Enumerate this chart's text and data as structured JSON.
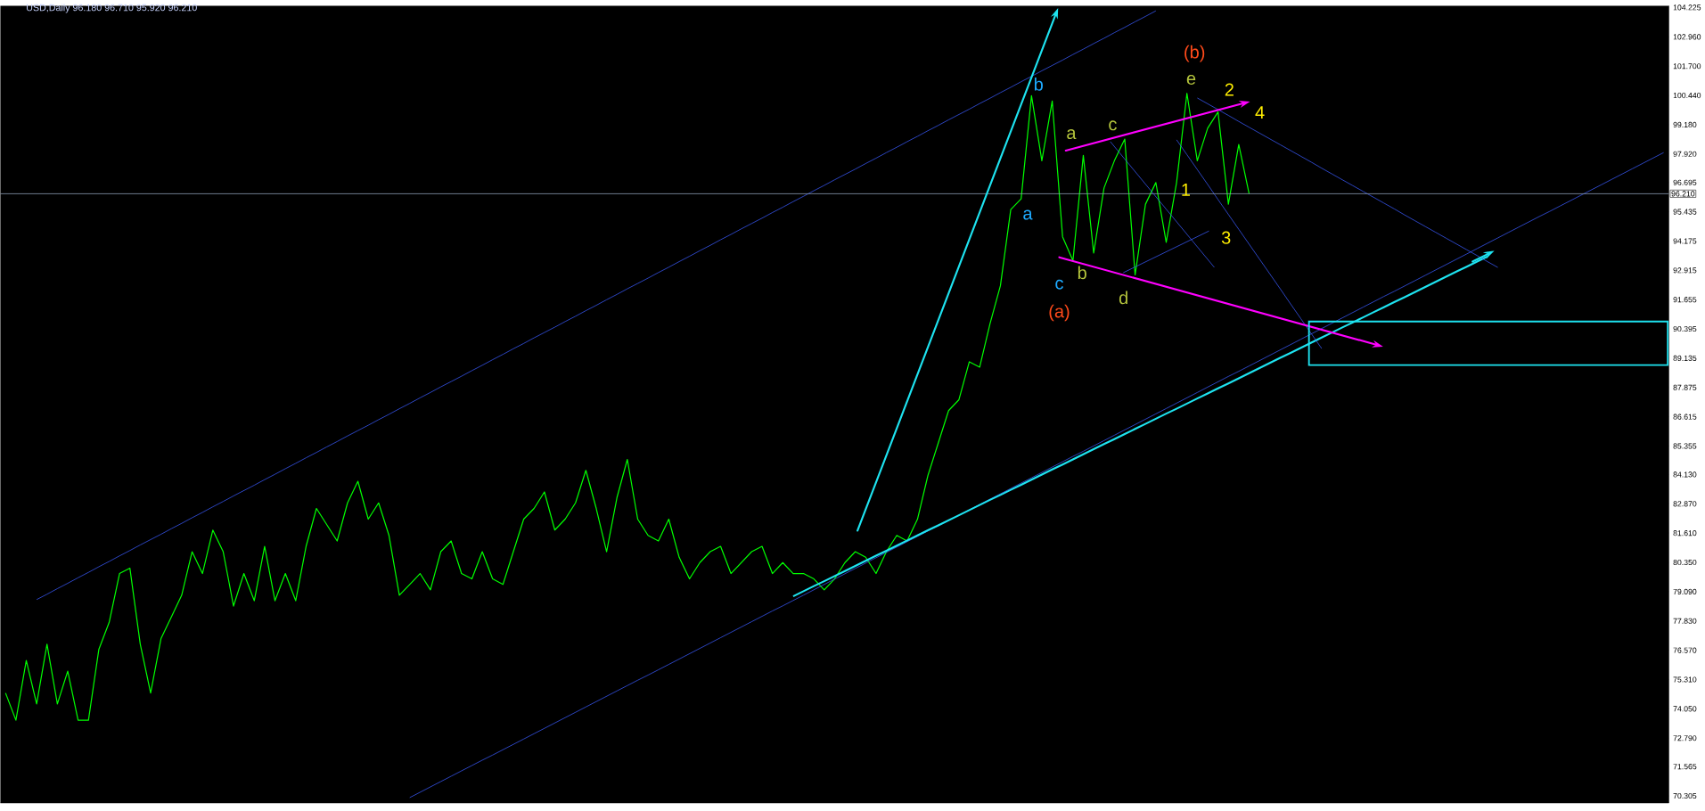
{
  "chart_data": {
    "type": "line",
    "title": "USD,Daily  96.180 96.710 95.920 96.210",
    "categories": [
      null,
      null,
      null,
      null,
      null,
      null,
      null,
      null,
      null,
      null,
      null,
      null,
      null,
      null,
      null,
      null,
      null,
      null,
      null,
      null,
      null,
      null,
      null,
      null,
      null,
      null,
      null,
      null,
      null,
      null,
      null,
      null,
      null,
      null,
      null,
      null,
      null,
      null,
      null,
      null,
      null,
      null,
      null,
      null,
      null,
      null,
      null,
      null,
      null,
      null,
      null,
      null,
      null,
      null,
      null,
      null,
      null,
      null,
      null,
      null,
      null,
      null,
      null,
      null,
      null,
      null,
      null,
      null,
      null,
      null,
      null,
      null,
      null,
      null,
      null,
      null,
      null,
      null,
      null,
      null,
      null,
      null,
      null,
      null,
      null,
      null,
      null,
      null,
      null,
      null,
      null,
      null,
      null,
      null,
      null,
      null,
      null,
      null,
      null,
      null,
      null,
      null,
      null,
      null,
      null,
      null,
      null,
      null,
      null,
      null,
      null,
      null,
      null,
      null,
      null,
      null,
      null,
      null,
      null,
      null,
      null,
      null,
      null,
      null,
      null,
      null,
      null,
      null,
      null,
      null,
      null,
      null,
      null,
      null,
      null,
      null,
      null,
      null,
      null,
      null,
      null,
      null,
      null,
      null,
      null,
      null,
      null,
      null,
      null,
      null,
      null,
      null,
      null,
      null,
      null,
      null,
      null,
      null,
      null,
      null,
      null
    ],
    "ylim": [
      70.0,
      104.3
    ],
    "tick_labels": "y",
    "grid": false,
    "marker": "none",
    "yticks": [
      {
        "value": 70.305,
        "label": "70.305"
      },
      {
        "value": 71.565,
        "label": "71.565"
      },
      {
        "value": 72.79,
        "label": "72.790"
      },
      {
        "value": 74.05,
        "label": "74.050"
      },
      {
        "value": 75.31,
        "label": "75.310"
      },
      {
        "value": 76.57,
        "label": "76.570"
      },
      {
        "value": 77.83,
        "label": "77.830"
      },
      {
        "value": 79.09,
        "label": "79.090"
      },
      {
        "value": 80.35,
        "label": "80.350"
      },
      {
        "value": 81.61,
        "label": "81.610"
      },
      {
        "value": 82.87,
        "label": "82.870"
      },
      {
        "value": 84.13,
        "label": "84.130"
      },
      {
        "value": 85.355,
        "label": "85.355"
      },
      {
        "value": 86.615,
        "label": "86.615"
      },
      {
        "value": 87.875,
        "label": "87.875"
      },
      {
        "value": 89.135,
        "label": "89.135"
      },
      {
        "value": 90.395,
        "label": "90.395"
      },
      {
        "value": 91.655,
        "label": "91.655"
      },
      {
        "value": 92.915,
        "label": "92.915"
      },
      {
        "value": 94.175,
        "label": "94.175"
      },
      {
        "value": 95.435,
        "label": "95.435"
      },
      {
        "value": 96.695,
        "label": "96.695"
      },
      {
        "value": 97.92,
        "label": "97.920"
      },
      {
        "value": 99.18,
        "label": "99.180"
      },
      {
        "value": 100.44,
        "label": "100.440"
      },
      {
        "value": 101.7,
        "label": "101.700"
      },
      {
        "value": 102.96,
        "label": "102.960"
      },
      {
        "value": 104.225,
        "label": "104.225"
      }
    ],
    "series": [
      {
        "color": "#00ff00",
        "values": [
          74.73,
          73.56,
          76.13,
          74.26,
          76.83,
          74.26,
          75.67,
          73.56,
          73.56,
          76.6,
          77.77,
          79.87,
          80.1,
          76.83,
          74.73,
          77.07,
          78.0,
          78.94,
          80.81,
          79.87,
          81.74,
          80.81,
          78.47,
          79.87,
          78.7,
          81.04,
          78.7,
          79.87,
          78.7,
          81.04,
          82.67,
          81.97,
          81.27,
          82.91,
          83.84,
          82.21,
          82.91,
          81.51,
          78.94,
          79.4,
          79.87,
          79.17,
          80.81,
          81.27,
          79.87,
          79.64,
          80.81,
          79.64,
          79.4,
          80.81,
          82.21,
          82.67,
          83.38,
          81.74,
          82.21,
          82.91,
          84.31,
          82.67,
          80.81,
          83.14,
          84.78,
          82.21,
          81.51,
          81.27,
          82.21,
          80.57,
          79.64,
          80.34,
          80.81,
          81.04,
          79.87,
          80.34,
          80.81,
          81.04,
          79.87,
          80.34,
          79.87,
          79.87,
          79.64,
          79.17,
          79.64,
          80.34,
          80.81,
          80.57,
          79.87,
          80.81,
          81.51,
          81.27,
          82.21,
          84.08,
          85.48,
          86.88,
          87.35,
          88.98,
          88.75,
          90.62,
          92.25,
          95.53,
          95.99,
          100.43,
          97.63,
          100.2,
          94.36,
          93.33,
          97.86,
          93.66,
          96.46,
          97.63,
          98.56,
          92.72,
          95.76,
          96.69,
          94.12,
          96.69,
          100.53,
          97.63,
          99.03,
          99.73,
          95.76,
          98.33,
          96.21,
          null,
          null,
          null,
          null,
          null,
          null,
          null,
          null,
          null,
          null,
          null,
          null,
          null,
          null,
          null,
          null,
          null,
          null,
          null,
          null,
          null,
          null,
          null,
          null,
          null,
          null,
          null,
          null,
          null,
          null,
          null,
          null,
          null,
          null,
          null,
          null,
          null,
          null,
          null,
          null
        ]
      },
      {
        "color": "#3a5cff",
        "values": [
          null,
          null,
          null,
          78.75,
          78.98,
          79.22,
          79.45,
          79.69,
          79.92,
          80.16,
          80.39,
          80.63,
          80.86,
          81.1,
          81.33,
          81.56,
          81.8,
          82.03,
          82.27,
          82.5,
          82.74,
          82.97,
          83.21,
          83.44,
          83.67,
          83.91,
          84.14,
          84.38,
          84.61,
          84.85,
          85.08,
          85.32,
          85.55,
          85.79,
          86.02,
          86.25,
          86.49,
          86.72,
          86.96,
          87.19,
          87.43,
          87.66,
          87.9,
          88.13,
          88.36,
          88.6,
          88.83,
          89.07,
          89.3,
          89.54,
          89.77,
          90.01,
          90.24,
          90.47,
          90.71,
          90.94,
          91.18,
          91.41,
          91.65,
          91.88,
          92.12,
          92.35,
          92.58,
          92.82,
          93.05,
          93.29,
          93.52,
          93.76,
          93.99,
          94.23,
          94.46,
          94.7,
          94.93,
          95.16,
          95.4,
          95.63,
          95.87,
          96.1,
          96.34,
          96.57,
          96.81,
          97.04,
          97.27,
          97.51,
          97.74,
          97.98,
          98.21,
          98.45,
          98.68,
          98.92,
          99.15,
          99.39,
          99.62,
          99.85,
          100.09,
          100.32,
          100.56,
          100.79,
          101.03,
          101.26,
          101.5,
          101.73,
          101.96,
          102.2,
          102.43,
          102.67,
          102.9,
          103.14,
          103.37,
          103.61,
          103.84,
          104.08,
          null,
          null,
          null,
          null,
          null,
          null,
          null,
          null,
          null,
          null,
          null,
          null,
          null,
          null,
          null,
          null,
          null,
          null,
          null,
          null,
          null,
          null,
          null,
          null,
          null,
          null,
          null,
          null,
          null,
          null,
          null,
          null,
          null,
          null,
          null,
          null,
          null,
          null,
          null,
          null,
          null,
          null,
          null,
          null,
          null,
          null,
          null,
          null,
          null
        ]
      },
      {
        "color": "#3a5cff",
        "values": [
          null,
          null,
          null,
          null,
          null,
          null,
          null,
          null,
          null,
          null,
          null,
          null,
          null,
          null,
          null,
          null,
          null,
          null,
          null,
          null,
          null,
          null,
          null,
          null,
          null,
          null,
          null,
          null,
          null,
          null,
          null,
          null,
          null,
          null,
          null,
          null,
          null,
          null,
          null,
          70.23,
          70.46,
          70.69,
          70.92,
          71.15,
          71.38,
          71.61,
          71.84,
          72.06,
          72.29,
          72.52,
          72.75,
          72.98,
          73.21,
          73.44,
          73.67,
          73.9,
          74.13,
          74.36,
          74.59,
          74.82,
          75.05,
          75.28,
          75.5,
          75.73,
          75.96,
          76.19,
          76.42,
          76.65,
          76.88,
          77.11,
          77.34,
          77.57,
          77.8,
          78.03,
          78.26,
          78.48,
          78.71,
          78.94,
          79.17,
          79.4,
          79.63,
          79.86,
          80.09,
          80.32,
          80.55,
          80.78,
          81.01,
          81.24,
          81.47,
          81.7,
          81.92,
          82.15,
          82.38,
          82.61,
          82.84,
          83.07,
          83.3,
          83.53,
          83.76,
          83.99,
          84.22,
          84.45,
          84.68,
          84.91,
          85.13,
          85.36,
          85.59,
          85.82,
          86.05,
          86.28,
          86.51,
          86.74,
          86.97,
          87.2,
          87.43,
          87.66,
          87.89,
          88.12,
          88.35,
          88.57,
          88.8,
          89.03,
          89.26,
          89.49,
          89.72,
          89.95,
          90.18,
          90.41,
          90.64,
          90.87,
          91.1,
          91.33,
          91.56,
          91.79,
          92.01,
          92.24,
          92.47,
          92.7,
          92.93,
          93.16,
          93.39,
          93.62,
          93.85,
          94.08,
          94.31,
          94.54,
          94.77,
          95.0,
          95.23,
          95.45,
          95.68,
          95.91,
          96.14,
          96.37,
          96.6,
          96.83,
          97.06,
          97.29,
          97.52,
          97.75,
          97.98
        ]
      },
      {
        "color": "#1ee3f0",
        "values": [
          null,
          null,
          null,
          null,
          null,
          null,
          null,
          null,
          null,
          null,
          null,
          null,
          null,
          null,
          null,
          null,
          null,
          null,
          null,
          null,
          null,
          null,
          null,
          null,
          null,
          null,
          null,
          null,
          null,
          null,
          null,
          null,
          null,
          null,
          null,
          null,
          null,
          null,
          null,
          null,
          null,
          null,
          null,
          null,
          null,
          null,
          null,
          null,
          null,
          null,
          null,
          null,
          null,
          null,
          null,
          null,
          null,
          null,
          null,
          null,
          null,
          null,
          null,
          null,
          null,
          null,
          null,
          null,
          null,
          null,
          null,
          null,
          null,
          null,
          null,
          null,
          78.89,
          79.11,
          79.33,
          79.54,
          79.76,
          79.98,
          80.2,
          80.42,
          80.64,
          80.85,
          81.07,
          81.29,
          81.51,
          81.73,
          81.94,
          82.16,
          82.38,
          82.6,
          82.82,
          83.04,
          83.25,
          83.47,
          83.69,
          83.91,
          84.13,
          84.35,
          84.56,
          84.78,
          85.0,
          85.22,
          85.44,
          85.65,
          85.87,
          86.09,
          86.31,
          86.53,
          86.75,
          86.96,
          87.18,
          87.4,
          87.62,
          87.84,
          88.05,
          88.27,
          88.49,
          88.71,
          88.93,
          89.15,
          89.36,
          89.58,
          89.8,
          90.02,
          90.24,
          90.46,
          90.67,
          90.89,
          91.11,
          91.33,
          91.55,
          91.76,
          91.98,
          92.2,
          92.42,
          92.64,
          92.86,
          93.07,
          93.29,
          93.51,
          null,
          null,
          null,
          null,
          null,
          null,
          null,
          null,
          null,
          null,
          null,
          null,
          null,
          null,
          null,
          null,
          null
        ]
      },
      {
        "color": "#3a5cff",
        "values": [
          null,
          null,
          null,
          null,
          null,
          null,
          null,
          null,
          null,
          null,
          null,
          null,
          null,
          null,
          null,
          null,
          null,
          null,
          null,
          null,
          null,
          null,
          null,
          null,
          null,
          null,
          null,
          null,
          null,
          null,
          null,
          null,
          null,
          null,
          null,
          null,
          null,
          null,
          null,
          null,
          null,
          null,
          null,
          null,
          null,
          null,
          null,
          null,
          null,
          null,
          null,
          null,
          null,
          null,
          null,
          null,
          null,
          null,
          null,
          null,
          null,
          null,
          null,
          null,
          null,
          null,
          null,
          null,
          null,
          null,
          null,
          null,
          null,
          null,
          null,
          null,
          null,
          null,
          null,
          null,
          null,
          null,
          null,
          null,
          null,
          null,
          null,
          null,
          null,
          null,
          null,
          null,
          null,
          null,
          null,
          null,
          null,
          null,
          null,
          null,
          null,
          null,
          null,
          null,
          null,
          null,
          null,
          null,
          null,
          null,
          null,
          null,
          null,
          null,
          null,
          100.33,
          100.08,
          99.83,
          99.58,
          99.32,
          99.07,
          98.82,
          98.57,
          98.32,
          98.07,
          97.82,
          97.57,
          97.31,
          97.06,
          96.81,
          96.56,
          96.31,
          96.06,
          95.81,
          95.56,
          95.3,
          95.05,
          94.8,
          94.55,
          94.3,
          94.05,
          93.8,
          93.55,
          93.29,
          93.04,
          null,
          null,
          null,
          null,
          null,
          null,
          null,
          null,
          null,
          null,
          null,
          null,
          null,
          null,
          null,
          null
        ]
      },
      {
        "color": "#3a5cff",
        "values": [
          null,
          null,
          null,
          null,
          null,
          null,
          null,
          null,
          null,
          null,
          null,
          null,
          null,
          null,
          null,
          null,
          null,
          null,
          null,
          null,
          null,
          null,
          null,
          null,
          null,
          null,
          null,
          null,
          null,
          null,
          null,
          null,
          null,
          null,
          null,
          null,
          null,
          null,
          null,
          null,
          null,
          null,
          null,
          null,
          null,
          null,
          null,
          null,
          null,
          null,
          null,
          null,
          null,
          null,
          null,
          null,
          null,
          null,
          null,
          null,
          null,
          null,
          null,
          null,
          null,
          null,
          null,
          null,
          null,
          null,
          null,
          null,
          null,
          null,
          null,
          null,
          null,
          null,
          null,
          null,
          null,
          null,
          null,
          null,
          null,
          null,
          null,
          null,
          null,
          null,
          null,
          null,
          null,
          null,
          null,
          null,
          null,
          null,
          null,
          null,
          null,
          null,
          null,
          null,
          null,
          null,
          null,
          null,
          null,
          null,
          null,
          null,
          null,
          98.53,
          97.89,
          97.25,
          96.61,
          95.96,
          95.32,
          94.68,
          94.04,
          93.4,
          92.76,
          92.12,
          91.47,
          90.83,
          90.19,
          89.55,
          null,
          null,
          null,
          null,
          null,
          null,
          null,
          null,
          null,
          null,
          null,
          null,
          null,
          null,
          null,
          null,
          null,
          null,
          null,
          null,
          null,
          null,
          null,
          null,
          null,
          null,
          null,
          null,
          null,
          null,
          null,
          null,
          null
        ]
      }
    ],
    "ref_lines": [
      {
        "axis": "y",
        "value": 96.21,
        "label": "96.210",
        "color": "#8a9bb0"
      }
    ],
    "annotations": [
      "b",
      "a",
      "c",
      "(a)",
      "a",
      "b",
      "c",
      "d",
      "e",
      "(b)",
      "1",
      "2",
      "3",
      "4"
    ]
  }
}
